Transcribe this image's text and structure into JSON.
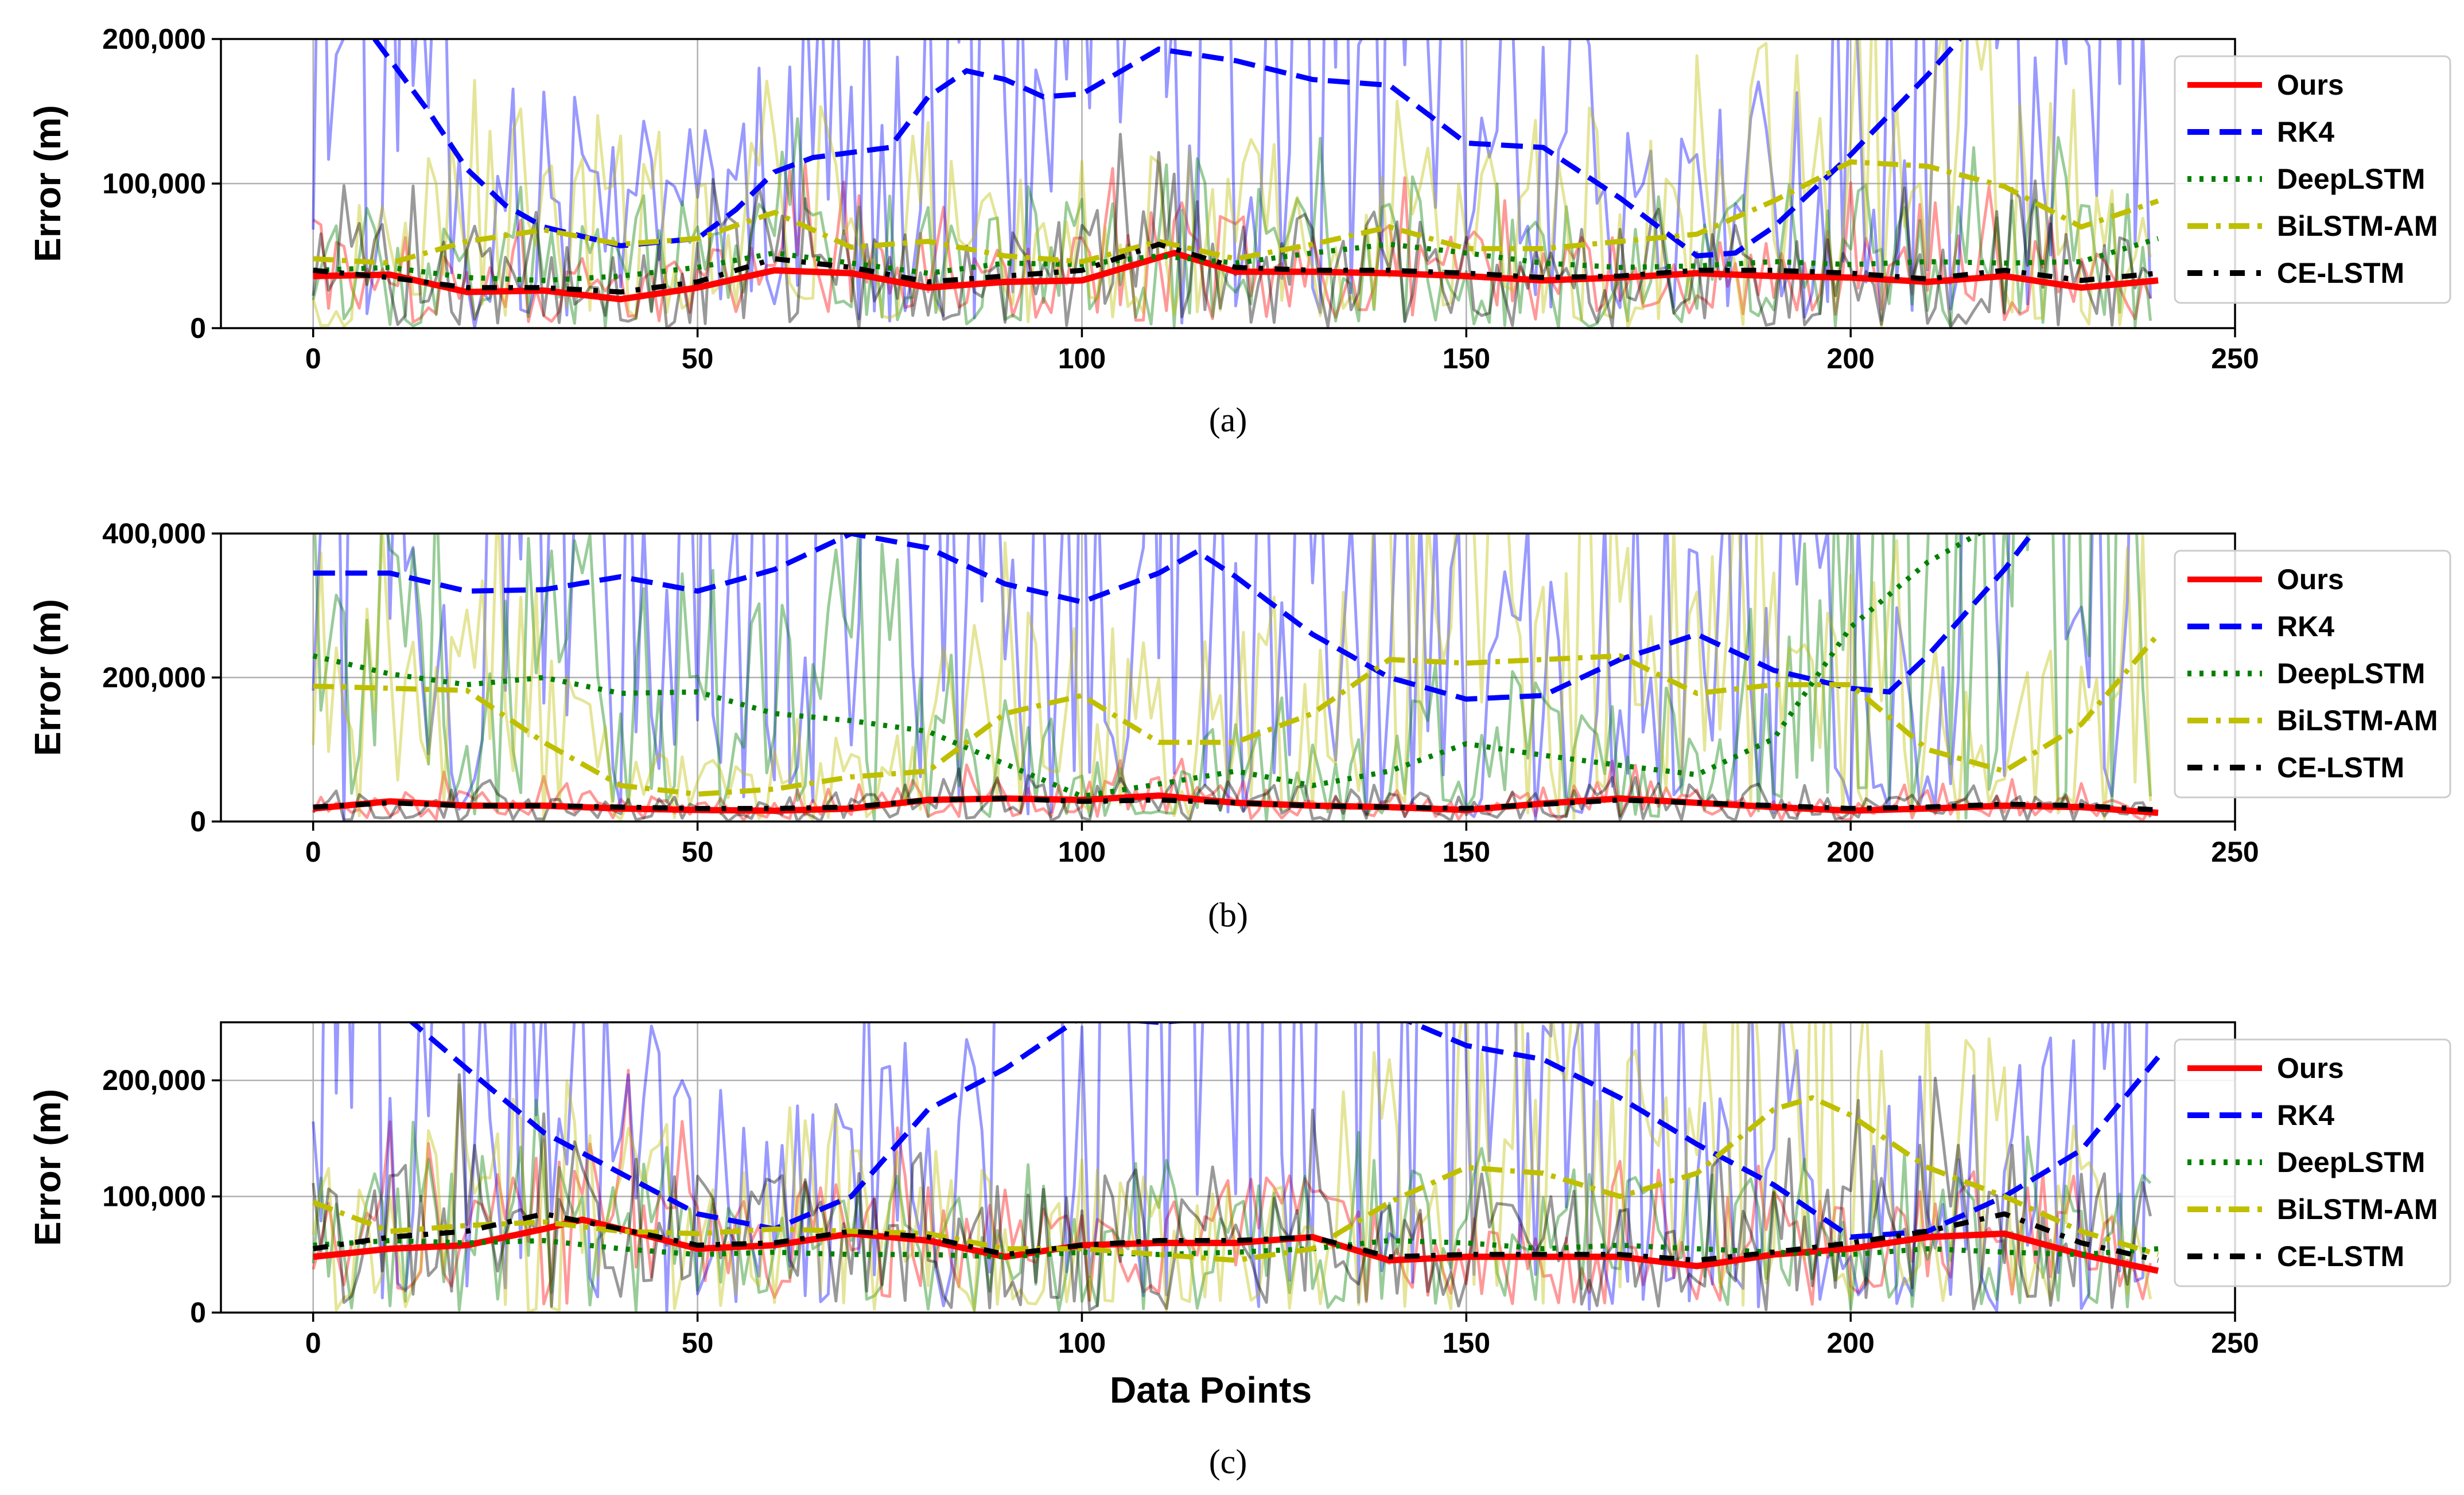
{
  "figure": {
    "xlabel": "Data Points",
    "legend_entries": [
      "Ours",
      "RK4",
      "DeepLSTM",
      "BiLSTM-AM",
      "CE-LSTM"
    ]
  },
  "chart_data": [
    {
      "type": "line",
      "caption": "(a)",
      "ylabel": "Error (m)",
      "xlabel": "",
      "xlim": [
        -12,
        250
      ],
      "ylim": [
        0,
        200000
      ],
      "xticks": [
        0,
        50,
        100,
        150,
        200,
        250
      ],
      "yticks": [
        0,
        100000,
        200000
      ],
      "ytick_labels": [
        "0",
        "100,000",
        "200,000"
      ],
      "legend_position": "top-right",
      "series": [
        {
          "name": "Ours",
          "color": "#ff0000",
          "style": "solid",
          "raw_amp": 0.9,
          "x": [
            0,
            10,
            20,
            30,
            40,
            50,
            60,
            70,
            80,
            90,
            100,
            112,
            120,
            130,
            140,
            150,
            160,
            170,
            180,
            190,
            200,
            210,
            220,
            230,
            240
          ],
          "y": [
            36000,
            37000,
            25000,
            26000,
            20000,
            28000,
            40000,
            38000,
            28000,
            32000,
            33000,
            52000,
            39000,
            39000,
            38000,
            36000,
            33000,
            35000,
            38000,
            36000,
            35000,
            32000,
            36000,
            28000,
            33000
          ]
        },
        {
          "name": "RK4",
          "color": "#0000ff",
          "style": "dashed",
          "raw_amp": 1.5,
          "x": [
            8,
            15,
            20,
            25,
            30,
            40,
            50,
            55,
            60,
            65,
            75,
            80,
            85,
            90,
            95,
            100,
            110,
            120,
            130,
            140,
            150,
            160,
            170,
            180,
            185,
            190,
            200,
            210,
            215
          ],
          "y": [
            200000,
            150000,
            110000,
            85000,
            70000,
            57000,
            62000,
            82000,
            108000,
            118000,
            125000,
            160000,
            178000,
            172000,
            160000,
            162000,
            193000,
            185000,
            172000,
            168000,
            128000,
            125000,
            90000,
            50000,
            52000,
            70000,
            120000,
            175000,
            205000
          ]
        },
        {
          "name": "DeepLSTM",
          "color": "#008000",
          "style": "dotted",
          "raw_amp": 1.2,
          "x": [
            0,
            10,
            20,
            30,
            40,
            50,
            60,
            70,
            80,
            90,
            100,
            110,
            120,
            130,
            140,
            150,
            160,
            170,
            180,
            190,
            200,
            210,
            220,
            230,
            240
          ],
          "y": [
            40000,
            42000,
            35000,
            33000,
            36000,
            42000,
            52000,
            45000,
            38000,
            45000,
            44000,
            50000,
            45000,
            52000,
            58000,
            52000,
            45000,
            42000,
            43000,
            46000,
            44000,
            46000,
            45000,
            46000,
            62000
          ]
        },
        {
          "name": "BiLSTM-AM",
          "color": "#bfbf00",
          "style": "dashdot",
          "raw_amp": 1.4,
          "x": [
            0,
            10,
            20,
            30,
            40,
            50,
            60,
            70,
            80,
            90,
            100,
            110,
            120,
            130,
            140,
            150,
            160,
            170,
            180,
            190,
            200,
            210,
            220,
            230,
            240
          ],
          "y": [
            48000,
            45000,
            60000,
            68000,
            58000,
            62000,
            80000,
            56000,
            60000,
            50000,
            46000,
            60000,
            48000,
            58000,
            70000,
            55000,
            55000,
            60000,
            65000,
            88000,
            115000,
            112000,
            98000,
            70000,
            88000
          ]
        },
        {
          "name": "CE-LSTM",
          "color": "#000000",
          "style": "dashdotted",
          "raw_amp": 1.1,
          "x": [
            0,
            10,
            20,
            30,
            40,
            50,
            60,
            70,
            80,
            90,
            100,
            110,
            120,
            130,
            140,
            150,
            160,
            170,
            180,
            190,
            200,
            210,
            220,
            230,
            240
          ],
          "y": [
            40000,
            35000,
            28000,
            28000,
            25000,
            32000,
            48000,
            42000,
            32000,
            36000,
            40000,
            58000,
            42000,
            40000,
            40000,
            38000,
            35000,
            36000,
            40000,
            40000,
            38000,
            34000,
            40000,
            33000,
            38000
          ]
        }
      ]
    },
    {
      "type": "line",
      "caption": "(b)",
      "ylabel": "Error (m)",
      "xlabel": "",
      "xlim": [
        -12,
        250
      ],
      "ylim": [
        0,
        400000
      ],
      "xticks": [
        0,
        50,
        100,
        150,
        200,
        250
      ],
      "yticks": [
        0,
        200000,
        400000
      ],
      "ytick_labels": [
        "0",
        "200,000",
        "400,000"
      ],
      "legend_position": "top-right",
      "series": [
        {
          "name": "Ours",
          "color": "#ff0000",
          "style": "solid",
          "raw_amp": 0.9,
          "x": [
            0,
            10,
            20,
            30,
            40,
            50,
            60,
            70,
            80,
            90,
            100,
            110,
            120,
            130,
            140,
            150,
            160,
            170,
            180,
            190,
            200,
            210,
            220,
            230,
            240
          ],
          "y": [
            18000,
            28000,
            22000,
            22000,
            18000,
            16000,
            15000,
            18000,
            30000,
            32000,
            30000,
            36000,
            26000,
            22000,
            20000,
            16000,
            25000,
            32000,
            26000,
            20000,
            15000,
            18000,
            22000,
            20000,
            12000
          ]
        },
        {
          "name": "RK4",
          "color": "#0000ff",
          "style": "dashed",
          "raw_amp": 1.4,
          "x": [
            0,
            10,
            20,
            30,
            40,
            50,
            60,
            70,
            80,
            90,
            100,
            110,
            115,
            120,
            130,
            140,
            150,
            160,
            170,
            180,
            190,
            200,
            205,
            210,
            220,
            225
          ],
          "y": [
            345000,
            345000,
            320000,
            322000,
            340000,
            320000,
            350000,
            400000,
            380000,
            330000,
            305000,
            345000,
            375000,
            340000,
            260000,
            200000,
            170000,
            175000,
            225000,
            260000,
            210000,
            185000,
            180000,
            230000,
            350000,
            420000
          ]
        },
        {
          "name": "DeepLSTM",
          "color": "#008000",
          "style": "dotted",
          "raw_amp": 1.2,
          "x": [
            0,
            10,
            20,
            30,
            40,
            50,
            60,
            70,
            80,
            90,
            100,
            110,
            120,
            130,
            140,
            150,
            160,
            170,
            180,
            190,
            200,
            210,
            220
          ],
          "y": [
            230000,
            205000,
            190000,
            200000,
            178000,
            180000,
            150000,
            140000,
            125000,
            80000,
            35000,
            52000,
            70000,
            50000,
            70000,
            108000,
            92000,
            78000,
            65000,
            115000,
            270000,
            360000,
            420000
          ]
        },
        {
          "name": "BiLSTM-AM",
          "color": "#bfbf00",
          "style": "dashdot",
          "raw_amp": 1.4,
          "x": [
            0,
            10,
            20,
            30,
            40,
            50,
            60,
            70,
            80,
            90,
            100,
            110,
            120,
            130,
            140,
            150,
            160,
            170,
            180,
            190,
            200,
            210,
            220,
            230,
            240
          ],
          "y": [
            188000,
            185000,
            182000,
            110000,
            50000,
            38000,
            45000,
            62000,
            70000,
            150000,
            175000,
            110000,
            110000,
            150000,
            225000,
            220000,
            225000,
            230000,
            178000,
            190000,
            190000,
            100000,
            70000,
            135000,
            260000
          ]
        },
        {
          "name": "CE-LSTM",
          "color": "#000000",
          "style": "dashdotted",
          "raw_amp": 1.1,
          "x": [
            0,
            10,
            20,
            30,
            40,
            50,
            60,
            70,
            80,
            90,
            100,
            110,
            120,
            130,
            140,
            150,
            160,
            170,
            180,
            190,
            200,
            210,
            220,
            230,
            240
          ],
          "y": [
            20000,
            26000,
            22000,
            22000,
            20000,
            18000,
            18000,
            20000,
            30000,
            32000,
            28000,
            30000,
            26000,
            22000,
            20000,
            18000,
            24000,
            30000,
            26000,
            22000,
            18000,
            20000,
            24000,
            22000,
            16000
          ]
        }
      ]
    },
    {
      "type": "line",
      "caption": "(c)",
      "ylabel": "Error (m)",
      "xlabel": "Data Points",
      "xlim": [
        -12,
        250
      ],
      "ylim": [
        0,
        250000
      ],
      "xticks": [
        0,
        50,
        100,
        150,
        200,
        250
      ],
      "yticks": [
        0,
        100000,
        200000
      ],
      "ytick_labels": [
        "0",
        "100,000",
        "200,000"
      ],
      "legend_position": "top-right",
      "series": [
        {
          "name": "Ours",
          "color": "#ff0000",
          "style": "solid",
          "raw_amp": 0.9,
          "x": [
            0,
            10,
            20,
            30,
            35,
            40,
            50,
            60,
            70,
            80,
            90,
            100,
            110,
            120,
            130,
            140,
            150,
            160,
            170,
            180,
            190,
            200,
            210,
            220,
            230,
            240
          ],
          "y": [
            48000,
            55000,
            58000,
            72000,
            80000,
            72000,
            55000,
            58000,
            68000,
            62000,
            48000,
            58000,
            60000,
            60000,
            65000,
            45000,
            48000,
            48000,
            48000,
            40000,
            50000,
            55000,
            65000,
            68000,
            50000,
            36000
          ]
        },
        {
          "name": "RK4",
          "color": "#0000ff",
          "style": "dashed",
          "raw_amp": 1.5,
          "x": [
            12,
            20,
            30,
            40,
            50,
            60,
            70,
            80,
            90,
            100,
            110,
            120,
            130,
            140,
            150,
            160,
            170,
            180,
            190,
            200,
            210,
            220,
            230,
            240
          ],
          "y": [
            255000,
            210000,
            155000,
            120000,
            85000,
            72000,
            100000,
            175000,
            210000,
            255000,
            250000,
            255000,
            265000,
            258000,
            230000,
            218000,
            185000,
            145000,
            110000,
            65000,
            70000,
            100000,
            140000,
            220000
          ]
        },
        {
          "name": "DeepLSTM",
          "color": "#008000",
          "style": "dotted",
          "raw_amp": 1.2,
          "x": [
            0,
            10,
            20,
            30,
            40,
            50,
            60,
            70,
            80,
            90,
            100,
            110,
            120,
            130,
            140,
            150,
            160,
            170,
            180,
            190,
            200,
            210,
            220,
            230,
            240
          ],
          "y": [
            58000,
            62000,
            60000,
            62000,
            55000,
            50000,
            52000,
            50000,
            50000,
            48000,
            52000,
            50000,
            52000,
            55000,
            62000,
            60000,
            55000,
            58000,
            55000,
            52000,
            50000,
            55000,
            52000,
            50000,
            55000
          ]
        },
        {
          "name": "BiLSTM-AM",
          "color": "#bfbf00",
          "style": "dashdot",
          "raw_amp": 1.4,
          "x": [
            0,
            10,
            20,
            30,
            40,
            50,
            60,
            70,
            80,
            90,
            100,
            110,
            120,
            130,
            140,
            150,
            160,
            170,
            180,
            190,
            195,
            200,
            210,
            220,
            230,
            240
          ],
          "y": [
            95000,
            70000,
            75000,
            78000,
            70000,
            68000,
            72000,
            70000,
            68000,
            55000,
            55000,
            50000,
            45000,
            55000,
            95000,
            125000,
            120000,
            100000,
            120000,
            175000,
            185000,
            170000,
            125000,
            100000,
            70000,
            50000
          ]
        },
        {
          "name": "CE-LSTM",
          "color": "#000000",
          "style": "dashdotted",
          "raw_amp": 1.1,
          "x": [
            0,
            10,
            20,
            30,
            40,
            50,
            60,
            70,
            80,
            90,
            100,
            110,
            120,
            130,
            140,
            150,
            160,
            170,
            180,
            190,
            200,
            210,
            220,
            230,
            240
          ],
          "y": [
            55000,
            65000,
            70000,
            85000,
            72000,
            58000,
            60000,
            70000,
            65000,
            50000,
            58000,
            62000,
            62000,
            65000,
            48000,
            50000,
            50000,
            50000,
            45000,
            52000,
            60000,
            70000,
            85000,
            60000,
            45000
          ]
        }
      ]
    }
  ]
}
